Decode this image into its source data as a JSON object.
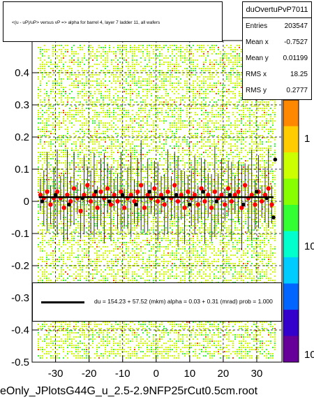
{
  "chart_data": {
    "type": "scatter",
    "title": "<(u - uP)/uP> versus   vP => alpha for barrel 4, layer 7 ladder 11, all wafers",
    "xlim": [
      -37,
      37.5
    ],
    "ylim": [
      -0.5,
      0.5
    ],
    "zlim_log": [
      1,
      200
    ],
    "x_ticks": [
      "-30",
      "-20",
      "-10",
      "0",
      "10",
      "20",
      "30"
    ],
    "y_ticks": [
      "-0.5",
      "-0.4",
      "-0.3",
      "-0.2",
      "-0.1",
      "0",
      "0.1",
      "0.2",
      "0.3",
      "0.4"
    ],
    "z_ticks": [
      "1",
      "10",
      "10"
    ],
    "grid": true,
    "series": [
      {
        "name": "profile",
        "marker_color": "#ff0000",
        "points": [
          [
            -34.5,
            0.02
          ],
          [
            -33.5,
            0.01
          ],
          [
            -32.5,
            0.03
          ],
          [
            -31.5,
            -0.01
          ],
          [
            -30.5,
            0.01
          ],
          [
            -29.5,
            0.03
          ],
          [
            -28.5,
            0.01
          ],
          [
            -27.5,
            -0.02
          ],
          [
            -26.5,
            0.02
          ],
          [
            -25.5,
            0.0
          ],
          [
            -24.5,
            0.04
          ],
          [
            -23.5,
            0.01
          ],
          [
            -22.5,
            -0.03
          ],
          [
            -21.5,
            0.02
          ],
          [
            -20.5,
            0.05
          ],
          [
            -19.5,
            0.0
          ],
          [
            -18.5,
            0.02
          ],
          [
            -17.5,
            -0.02
          ],
          [
            -16.5,
            0.03
          ],
          [
            -15.5,
            0.01
          ],
          [
            -14.5,
            0.04
          ],
          [
            -13.5,
            -0.01
          ],
          [
            -12.5,
            0.02
          ],
          [
            -11.5,
            0.0
          ],
          [
            -10.5,
            0.03
          ],
          [
            -9.5,
            -0.02
          ],
          [
            -8.5,
            0.01
          ],
          [
            -7.5,
            0.02
          ],
          [
            -6.5,
            0.0
          ],
          [
            -5.5,
            0.03
          ],
          [
            -4.5,
            0.05
          ],
          [
            -3.5,
            -0.02
          ],
          [
            -2.5,
            0.02
          ],
          [
            -1.5,
            0.01
          ],
          [
            -0.5,
            0.04
          ],
          [
            0.5,
            0.0
          ],
          [
            1.5,
            0.02
          ],
          [
            2.5,
            -0.01
          ],
          [
            3.5,
            0.03
          ],
          [
            4.5,
            0.01
          ],
          [
            5.5,
            0.05
          ],
          [
            6.5,
            0.0
          ],
          [
            7.5,
            0.02
          ],
          [
            8.5,
            -0.02
          ],
          [
            9.5,
            0.03
          ],
          [
            10.5,
            0.01
          ],
          [
            11.5,
            0.02
          ],
          [
            12.5,
            -0.01
          ],
          [
            13.5,
            0.04
          ],
          [
            14.5,
            0.0
          ],
          [
            15.5,
            0.02
          ],
          [
            16.5,
            -0.02
          ],
          [
            17.5,
            0.03
          ],
          [
            18.5,
            0.01
          ],
          [
            19.5,
            0.02
          ],
          [
            20.5,
            -0.01
          ],
          [
            21.5,
            0.04
          ],
          [
            22.5,
            0.0
          ],
          [
            23.5,
            0.02
          ],
          [
            24.5,
            0.03
          ],
          [
            25.5,
            -0.02
          ],
          [
            26.5,
            0.05
          ],
          [
            27.5,
            0.01
          ],
          [
            28.5,
            0.02
          ],
          [
            29.5,
            -0.01
          ],
          [
            30.5,
            0.03
          ],
          [
            31.5,
            0.0
          ],
          [
            32.5,
            0.02
          ],
          [
            33.5,
            0.04
          ],
          [
            34.5,
            -0.01
          ]
        ]
      },
      {
        "name": "black",
        "marker_color": "#000000",
        "points": [
          [
            -34,
            0.0
          ],
          [
            -30,
            0.02
          ],
          [
            -26,
            -0.01
          ],
          [
            -22,
            0.01
          ],
          [
            -18,
            0.03
          ],
          [
            -14,
            0.0
          ],
          [
            -10,
            0.02
          ],
          [
            -6,
            -0.01
          ],
          [
            -2,
            0.03
          ],
          [
            2,
            0.01
          ],
          [
            6,
            0.02
          ],
          [
            10,
            -0.01
          ],
          [
            14,
            0.03
          ],
          [
            18,
            0.0
          ],
          [
            22,
            0.02
          ],
          [
            26,
            -0.01
          ],
          [
            30,
            0.03
          ],
          [
            33,
            0.01
          ],
          [
            35.5,
            0.13
          ],
          [
            35.0,
            -0.05
          ]
        ]
      }
    ]
  },
  "title_box": {
    "text": "<(u - uP)/uP> versus   vP => alpha for barrel 4, layer 7 ladder 11, all wafers"
  },
  "stats": {
    "title": "duOvertuPvP7011",
    "rows": [
      {
        "label": "Entries",
        "value": "203547"
      },
      {
        "label": "Mean x",
        "value": "-0.7527"
      },
      {
        "label": "Mean y",
        "value": "0.01199"
      },
      {
        "label": "RMS x",
        "value": "18.25"
      },
      {
        "label": "RMS y",
        "value": "0.2777"
      }
    ]
  },
  "legend": {
    "text": "du =   154.23 +  57.52 (mkm) alpha =    0.03 +   0.31 (mrad) prob = 1.000"
  },
  "footer": {
    "text": "eOnly_JPlotsG44G_u_2.5-2.9NFP25rCut0.5cm.root"
  },
  "colors": {
    "dense": "#ccff00",
    "sparse": "#33ff33",
    "hot": "#ff4400",
    "palette_top": "#ff8800",
    "profile": "#ff0000"
  }
}
